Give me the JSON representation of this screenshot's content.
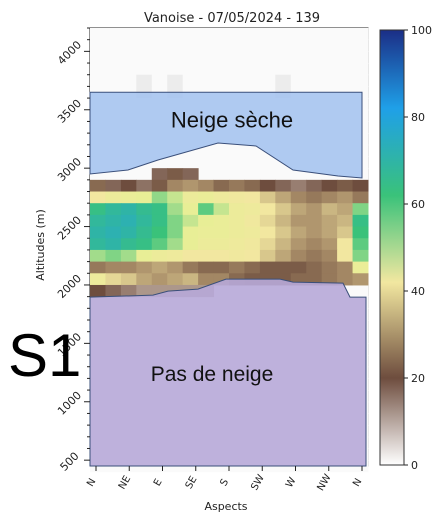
{
  "overlay_label": "S1",
  "chart_data": {
    "type": "heatmap",
    "title": "Vanoise - 07/05/2024 - 139",
    "xlabel": "Aspects",
    "ylabel": "Altitudes (m)",
    "categories": [
      "N",
      "NE",
      "E",
      "SE",
      "S",
      "SW",
      "W",
      "NW",
      "N"
    ],
    "ylim": [
      450,
      4200
    ],
    "yticks": [
      500,
      1000,
      1500,
      2000,
      2500,
      3000,
      3500,
      4000
    ],
    "colorbar": {
      "min": 0,
      "max": 100,
      "ticks": [
        0,
        20,
        40,
        60,
        80,
        100
      ]
    },
    "rows_altitude_top": [
      3000,
      2900,
      2800,
      2700,
      2600,
      2500,
      2400,
      2300,
      2200,
      2100,
      2000
    ],
    "cells": [
      [
        null,
        null,
        null,
        null,
        18,
        22,
        18,
        null,
        null,
        null,
        null,
        null,
        null,
        null,
        null,
        null,
        null,
        null
      ],
      [
        24,
        18,
        20,
        17,
        22,
        28,
        30,
        28,
        24,
        26,
        24,
        20,
        18,
        16,
        18,
        20,
        22,
        20
      ],
      [
        40,
        46,
        48,
        50,
        55,
        52,
        46,
        48,
        44,
        42,
        40,
        36,
        32,
        28,
        26,
        28,
        30,
        26
      ],
      [
        62,
        66,
        68,
        64,
        62,
        54,
        50,
        58,
        52,
        46,
        44,
        40,
        36,
        32,
        30,
        34,
        32,
        56
      ],
      [
        66,
        68,
        70,
        66,
        62,
        56,
        52,
        50,
        48,
        46,
        42,
        38,
        34,
        30,
        30,
        32,
        34,
        62
      ],
      [
        68,
        70,
        68,
        64,
        60,
        56,
        50,
        48,
        48,
        46,
        44,
        40,
        36,
        32,
        30,
        32,
        36,
        60
      ],
      [
        66,
        68,
        64,
        62,
        58,
        54,
        50,
        46,
        46,
        44,
        42,
        38,
        34,
        30,
        28,
        30,
        40,
        58
      ],
      [
        54,
        56,
        54,
        50,
        46,
        44,
        40,
        40,
        40,
        42,
        40,
        36,
        32,
        28,
        26,
        28,
        40,
        56
      ],
      [
        26,
        28,
        28,
        30,
        32,
        30,
        26,
        24,
        24,
        26,
        24,
        22,
        22,
        22,
        24,
        26,
        28,
        48
      ],
      [
        44,
        38,
        36,
        32,
        30,
        32,
        34,
        28,
        28,
        24,
        22,
        22,
        22,
        24,
        24,
        26,
        28,
        30
      ],
      [
        20,
        18,
        16,
        14,
        14,
        14,
        14,
        14,
        null,
        null,
        null,
        null,
        null,
        null,
        null,
        null,
        null,
        null
      ]
    ],
    "annotations": [
      {
        "text": "Neige sèche",
        "zone": "dry-snow",
        "color": "#a6c4ef",
        "altitude_range": [
          2950,
          3650
        ]
      },
      {
        "text": "Pas de neige",
        "zone": "no-snow",
        "color": "#b7a9d8",
        "altitude_range": [
          500,
          2050
        ]
      }
    ]
  }
}
